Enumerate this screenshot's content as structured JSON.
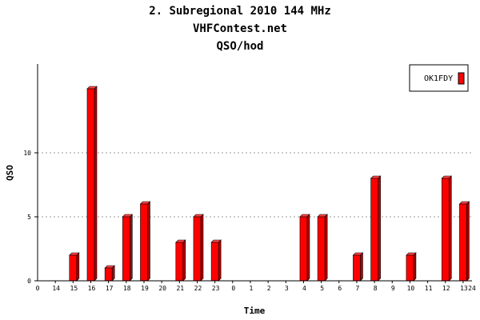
{
  "chart_data": {
    "type": "bar",
    "title": "2. Subregional 2010 144 MHz",
    "subtitle": "VHFContest.net",
    "subtitle2": "QSO/hod",
    "xlabel": "Time",
    "ylabel": "QSO",
    "ylim": [
      0,
      17
    ],
    "yticks": [
      0,
      5,
      10
    ],
    "grid": true,
    "legend_position": "top-right",
    "axis_end_labels": [
      "0",
      "24"
    ],
    "categories": [
      "14",
      "15",
      "16",
      "17",
      "18",
      "19",
      "20",
      "21",
      "22",
      "23",
      "0",
      "1",
      "2",
      "3",
      "4",
      "5",
      "6",
      "7",
      "8",
      "9",
      "10",
      "11",
      "12",
      "13"
    ],
    "series": [
      {
        "name": "OK1FDY",
        "color": "#ff0000",
        "values": [
          0,
          2,
          15,
          1,
          5,
          6,
          0,
          3,
          5,
          3,
          0,
          0,
          0,
          0,
          5,
          5,
          0,
          2,
          8,
          0,
          2,
          0,
          8,
          6
        ]
      }
    ]
  }
}
